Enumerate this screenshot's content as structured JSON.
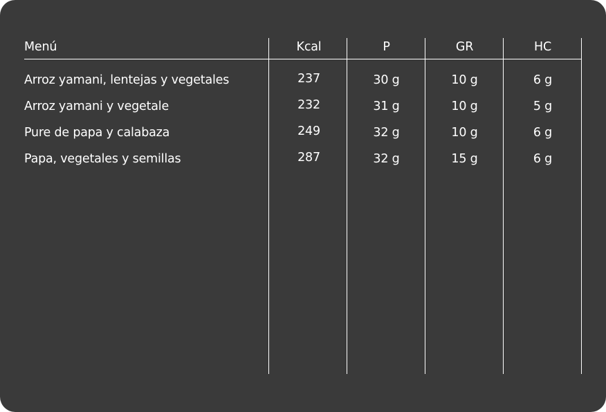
{
  "table": {
    "headers": [
      "Menú",
      "Kcal",
      "P",
      "GR",
      "HC"
    ],
    "rows": [
      [
        "Arroz yamani, lentejas y vegetales",
        "237",
        "30 g",
        "10 g",
        "6 g"
      ],
      [
        "Arroz yamani y vegetale",
        "232",
        "31 g",
        "10 g",
        "5 g"
      ],
      [
        "Pure de papa y calabaza",
        "249",
        "32 g",
        "10 g",
        "6 g"
      ],
      [
        "Papa, vegetales y semillas",
        "287",
        "32 g",
        "15 g",
        "6 g"
      ]
    ]
  },
  "colors": {
    "background": "#3a3a3a",
    "text": "#ffffff"
  }
}
